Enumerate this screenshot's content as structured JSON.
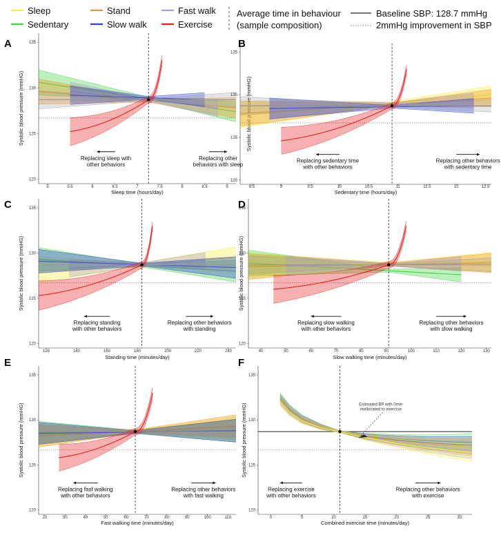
{
  "legend": {
    "behaviours": [
      {
        "label": "Sleep",
        "color": "#f5ef3a"
      },
      {
        "label": "Stand",
        "color": "#f0931e"
      },
      {
        "label": "Fast walk",
        "color": "#a59fc9"
      },
      {
        "label": "Sedentary",
        "color": "#3fd43f"
      },
      {
        "label": "Slow walk",
        "color": "#2b3fd6"
      },
      {
        "label": "Exercise",
        "color": "#e8201f"
      }
    ],
    "avg_line_label": "Average time in behaviour",
    "avg_line_label2": "(sample composition)",
    "baseline_label": "Baseline SBP: 128.7 mmHg",
    "improvement_label": "2mmHg improvement in SBP"
  },
  "chart_data": [
    {
      "panel": "A",
      "type": "line",
      "xlabel": "Sleep time (hours/day)",
      "ylabel": "Systolic blood pressure (mmHG)",
      "xlim": [
        4.8,
        9.2
      ],
      "ylim": [
        119.5,
        136
      ],
      "xticks": [
        5,
        5.5,
        6,
        6.5,
        7,
        7.5,
        8,
        8.5,
        9
      ],
      "yticks": [
        120,
        125,
        130,
        135
      ],
      "avg_x": 7.25,
      "baseline": 128.7,
      "improvement": 126.7,
      "focus_key": "Sleep",
      "focus_range": [
        4.8,
        9.2
      ],
      "others": [
        {
          "name": "Sedentary",
          "x": [
            4.8,
            9.2
          ],
          "y": [
            130.6,
            127.4
          ]
        },
        {
          "name": "Stand",
          "x": [
            4.8,
            9.2
          ],
          "y": [
            129.6,
            127.8
          ]
        },
        {
          "name": "Fast walk",
          "x": [
            5.5,
            8.8
          ],
          "y": [
            129.6,
            127.8
          ]
        },
        {
          "name": "Slow walk",
          "x": [
            5.5,
            8.5
          ],
          "y": [
            129.2,
            128.7
          ]
        }
      ],
      "exercise": {
        "x": [
          5.5,
          7.25,
          7.55
        ],
        "y": [
          125.2,
          128.7,
          133.0
        ]
      },
      "annotations": [
        {
          "text": [
            "Replacing sleep with",
            "other behaviors"
          ],
          "side": "left",
          "arrow_x": [
            6.5,
            6.1
          ]
        },
        {
          "text": [
            "Replacing other",
            "behaviors with sleep"
          ],
          "side": "right",
          "arrow_x": [
            8.6,
            9.0
          ]
        }
      ]
    },
    {
      "panel": "B",
      "type": "line",
      "xlabel": "Sedentary time (hours/day)",
      "ylabel": "Systolic blood pressure (mmHG)",
      "xlim": [
        8.3,
        12.6
      ],
      "ylim": [
        119.5,
        136
      ],
      "xticks": [
        8.5,
        9,
        9.5,
        10,
        10.5,
        11,
        11.5,
        12,
        12.5
      ],
      "yticks": [
        120,
        125,
        130,
        135
      ],
      "avg_x": 10.9,
      "baseline": 128.7,
      "improvement": 126.7,
      "focus_key": "Sedentary",
      "focus_range": [
        8.3,
        12.6
      ],
      "others": [
        {
          "name": "Sleep",
          "x": [
            8.3,
            12.6
          ],
          "y": [
            127.6,
            130.0
          ]
        },
        {
          "name": "Stand",
          "x": [
            8.3,
            12.6
          ],
          "y": [
            127.8,
            129.6
          ]
        },
        {
          "name": "Fast walk",
          "x": [
            8.8,
            12.3
          ],
          "y": [
            128.3,
            129.3
          ]
        },
        {
          "name": "Slow walk",
          "x": [
            8.8,
            12.3
          ],
          "y": [
            128.4,
            128.7
          ]
        }
      ],
      "exercise": {
        "x": [
          9.0,
          10.9,
          11.15
        ],
        "y": [
          124.6,
          128.7,
          133.0
        ]
      },
      "annotations": [
        {
          "text": [
            "Replacing sedentary time",
            "with other behaviors"
          ],
          "side": "left",
          "arrow_x": [
            10.0,
            9.6
          ]
        },
        {
          "text": [
            "Replacing other behaviors",
            "with sedentary time"
          ],
          "side": "right",
          "arrow_x": [
            12.0,
            12.4
          ]
        }
      ]
    },
    {
      "panel": "C",
      "type": "line",
      "xlabel": "Standing time (minutes/day)",
      "ylabel": "Systolic blood pressure (mmHG)",
      "xlim": [
        115,
        245
      ],
      "ylim": [
        119.5,
        136
      ],
      "xticks": [
        120,
        140,
        160,
        180,
        200,
        220,
        240
      ],
      "yticks": [
        120,
        125,
        130,
        135
      ],
      "avg_x": 183,
      "baseline": 128.7,
      "improvement": 126.7,
      "focus_key": "Stand",
      "focus_range": [
        115,
        245
      ],
      "others": [
        {
          "name": "Sleep",
          "x": [
            115,
            245
          ],
          "y": [
            128.0,
            129.5
          ]
        },
        {
          "name": "Sedentary",
          "x": [
            115,
            245
          ],
          "y": [
            129.3,
            128.0
          ]
        },
        {
          "name": "Fast walk",
          "x": [
            135,
            225
          ],
          "y": [
            128.3,
            129.2
          ]
        },
        {
          "name": "Slow walk",
          "x": [
            115,
            245
          ],
          "y": [
            129.1,
            128.4
          ]
        }
      ],
      "exercise": {
        "x": [
          115,
          183,
          190
        ],
        "y": [
          125.3,
          128.7,
          133.0
        ]
      },
      "annotations": [
        {
          "text": [
            "Replacing standing",
            "with other behaviors"
          ],
          "side": "left",
          "arrow_x": [
            162,
            145
          ]
        },
        {
          "text": [
            "Replacing other behaviors",
            "with standing"
          ],
          "side": "right",
          "arrow_x": [
            212,
            230
          ]
        }
      ]
    },
    {
      "panel": "D",
      "type": "line",
      "xlabel": "Slow walking time (minutes/day)",
      "ylabel": "Systolic blood pressure (mmHG)",
      "xlim": [
        35,
        132
      ],
      "ylim": [
        119.5,
        136
      ],
      "xticks": [
        40,
        50,
        60,
        70,
        80,
        90,
        100,
        110,
        120,
        130
      ],
      "yticks": [
        120,
        125,
        130,
        135
      ],
      "avg_x": 91,
      "baseline": 128.7,
      "improvement": 126.7,
      "focus_key": "Slow walk",
      "focus_range": [
        35,
        132
      ],
      "others": [
        {
          "name": "Sleep",
          "x": [
            35,
            132
          ],
          "y": [
            128.6,
            129.0
          ]
        },
        {
          "name": "Sedentary",
          "x": [
            35,
            120
          ],
          "y": [
            128.9,
            127.6
          ]
        },
        {
          "name": "Stand",
          "x": [
            35,
            132
          ],
          "y": [
            128.5,
            128.9
          ]
        },
        {
          "name": "Fast walk",
          "x": [
            50,
            120
          ],
          "y": [
            128.6,
            128.8
          ]
        }
      ],
      "exercise": {
        "x": [
          45,
          91,
          98
        ],
        "y": [
          126.0,
          128.7,
          133.0
        ]
      },
      "annotations": [
        {
          "text": [
            "Replacing slow walking",
            "with other behaviors"
          ],
          "side": "left",
          "arrow_x": [
            72,
            60
          ]
        },
        {
          "text": [
            "Replacing other behaviors",
            "with slow walking"
          ],
          "side": "right",
          "arrow_x": [
            110,
            122
          ]
        }
      ]
    },
    {
      "panel": "E",
      "type": "line",
      "xlabel": "Fast walking time (minutes/day)",
      "ylabel": "Systolic blood pressure (mmHG)",
      "xlim": [
        17,
        114
      ],
      "ylim": [
        119.5,
        136
      ],
      "xticks": [
        20,
        30,
        40,
        50,
        60,
        70,
        80,
        90,
        100,
        110
      ],
      "yticks": [
        120,
        125,
        130,
        135
      ],
      "avg_x": 64.5,
      "baseline": 128.7,
      "improvement": 126.7,
      "focus_key": "Fast walk",
      "focus_range": [
        17,
        114
      ],
      "others": [
        {
          "name": "Sleep",
          "x": [
            17,
            114
          ],
          "y": [
            128.3,
            129.1
          ]
        },
        {
          "name": "Sedentary",
          "x": [
            17,
            114
          ],
          "y": [
            128.6,
            128.8
          ]
        },
        {
          "name": "Stand",
          "x": [
            17,
            114
          ],
          "y": [
            128.2,
            129.3
          ]
        },
        {
          "name": "Slow walk",
          "x": [
            17,
            114
          ],
          "y": [
            128.5,
            128.8
          ]
        }
      ],
      "exercise": {
        "x": [
          27,
          64.5,
          73
        ],
        "y": [
          125.8,
          128.7,
          133.0
        ]
      },
      "annotations": [
        {
          "text": [
            "Replacing fast walking",
            "with other behaviors"
          ],
          "side": "left",
          "arrow_x": [
            46,
            34
          ]
        },
        {
          "text": [
            "Replacing other behaviors",
            "with fast walking"
          ],
          "side": "right",
          "arrow_x": [
            92,
            104
          ]
        }
      ]
    },
    {
      "panel": "F",
      "type": "line",
      "xlabel": "Combined exercise time (minutes/day)",
      "ylabel": "Systolic blood pressure (mmHG)",
      "xlim": [
        -2,
        32
      ],
      "ylim": [
        119.5,
        136
      ],
      "xticks": [
        0,
        5,
        10,
        15,
        20,
        25,
        30
      ],
      "yticks": [
        120,
        125,
        130,
        135
      ],
      "avg_x": 11,
      "baseline": 128.7,
      "improvement": 126.7,
      "curve_x": [
        1.5,
        3,
        5,
        8,
        11,
        15,
        20,
        25,
        30,
        32
      ],
      "curve_y": [
        132.2,
        131.0,
        130.0,
        129.2,
        128.7,
        128.1,
        127.6,
        127.2,
        126.9,
        126.8
      ],
      "series_keys": [
        "Sedentary",
        "Slow walk",
        "Stand",
        "Fast walk",
        "Sleep"
      ],
      "callout": [
        "Estimated BP with 0min",
        "reallocated to exercise"
      ],
      "annotations": [
        {
          "text": [
            "Replacing exercise",
            "with other behaviors"
          ],
          "side": "left",
          "arrow_x": [
            5,
            1.5
          ]
        },
        {
          "text": [
            "Replacing other behaviors",
            "with exercise"
          ],
          "side": "right",
          "arrow_x": [
            23,
            27
          ]
        }
      ]
    }
  ]
}
